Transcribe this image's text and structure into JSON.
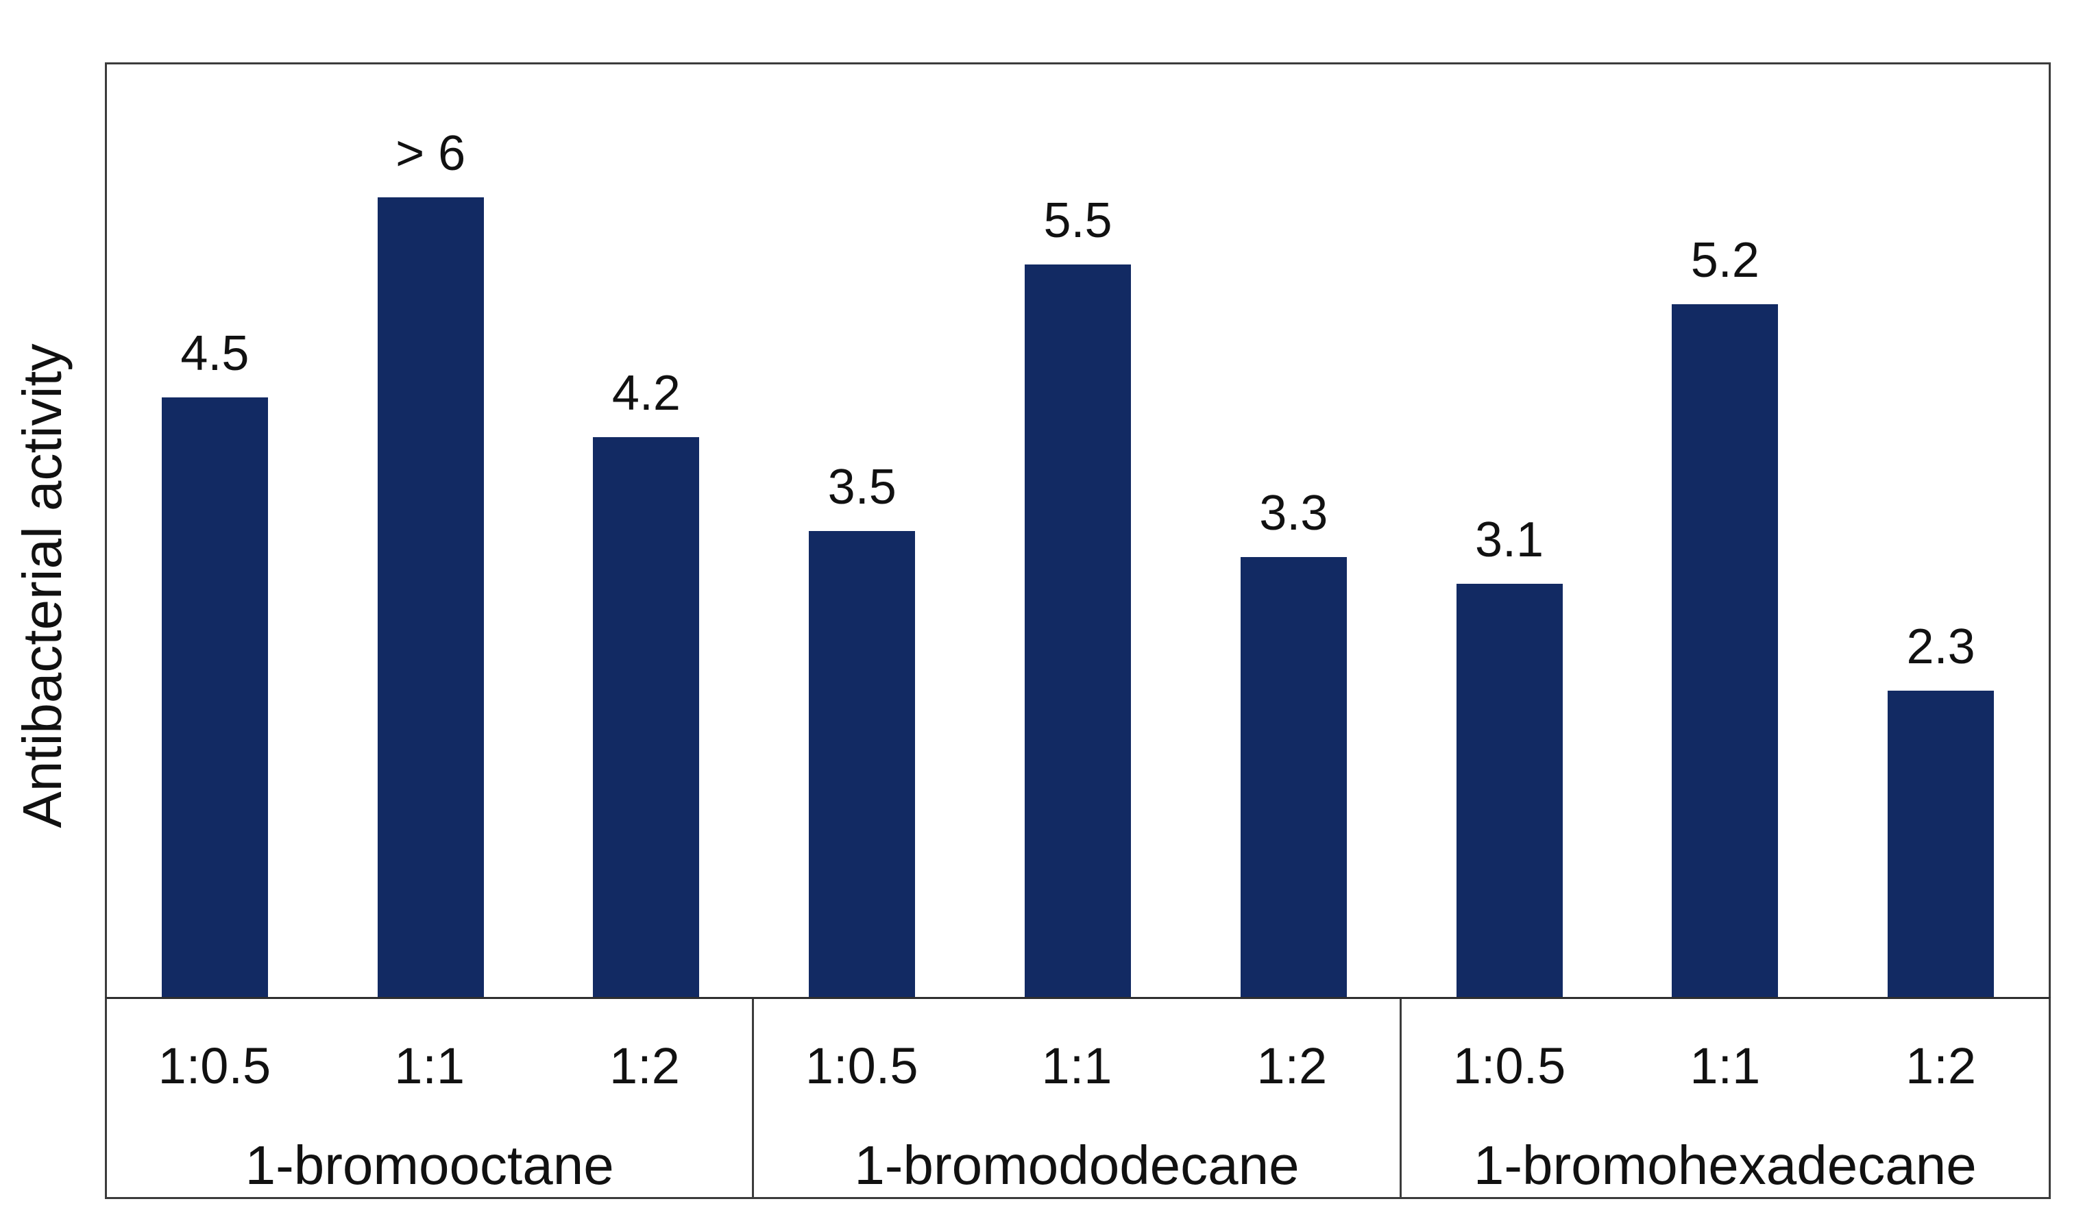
{
  "chart_data": {
    "type": "bar",
    "title": "",
    "xlabel": "",
    "ylabel": "Antibacterial activity",
    "ylim": [
      0,
      7
    ],
    "y_axis_tick_labels_visible": false,
    "gridlines": false,
    "legend": "none",
    "bar_color": "#122a63",
    "frame_color": "#3c3c3c",
    "background_color": "#ffffff",
    "categories_level_1": [
      "1:0.5",
      "1:1",
      "1:2"
    ],
    "groups": [
      {
        "name": "1-bromooctane",
        "points": [
          {
            "category": "1:0.5",
            "value": 4.5,
            "label": "4.5"
          },
          {
            "category": "1:1",
            "value": 6.0,
            "label": "> 6"
          },
          {
            "category": "1:2",
            "value": 4.2,
            "label": "4.2"
          }
        ]
      },
      {
        "name": "1-bromododecane",
        "points": [
          {
            "category": "1:0.5",
            "value": 3.5,
            "label": "3.5"
          },
          {
            "category": "1:1",
            "value": 5.5,
            "label": "5.5"
          },
          {
            "category": "1:2",
            "value": 3.3,
            "label": "3.3"
          }
        ]
      },
      {
        "name": "1-bromohexadecane",
        "points": [
          {
            "category": "1:0.5",
            "value": 3.1,
            "label": "3.1"
          },
          {
            "category": "1:1",
            "value": 5.2,
            "label": "5.2"
          },
          {
            "category": "1:2",
            "value": 2.3,
            "label": "2.3"
          }
        ]
      }
    ]
  }
}
